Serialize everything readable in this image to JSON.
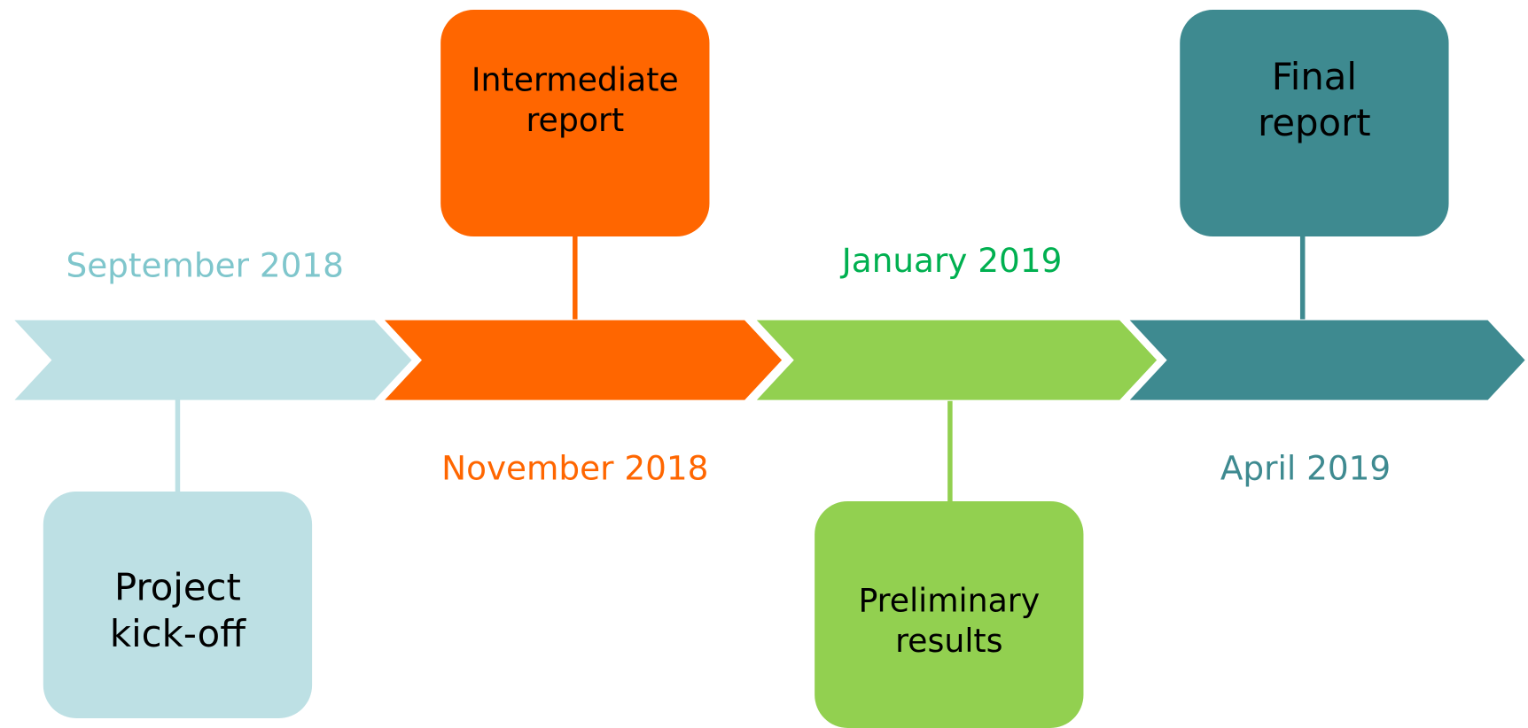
{
  "milestones": [
    {
      "date": "September 2018",
      "label": [
        "Project",
        "kick-off"
      ],
      "color": "#bde0e4",
      "date_color": "#7fc6cc",
      "text_color": "#000000"
    },
    {
      "date": "November 2018",
      "label": [
        "Intermediate",
        "report"
      ],
      "color": "#ff6600",
      "date_color": "#ff6600",
      "text_color": "#000000"
    },
    {
      "date": "January 2019",
      "label": [
        "Preliminary",
        "results"
      ],
      "color": "#92d050",
      "date_color": "#00b050",
      "text_color": "#000000"
    },
    {
      "date": "April 2019",
      "label": [
        "Final",
        "report"
      ],
      "color": "#3e8a90",
      "date_color": "#3e8a90",
      "text_color": "#000000"
    }
  ]
}
